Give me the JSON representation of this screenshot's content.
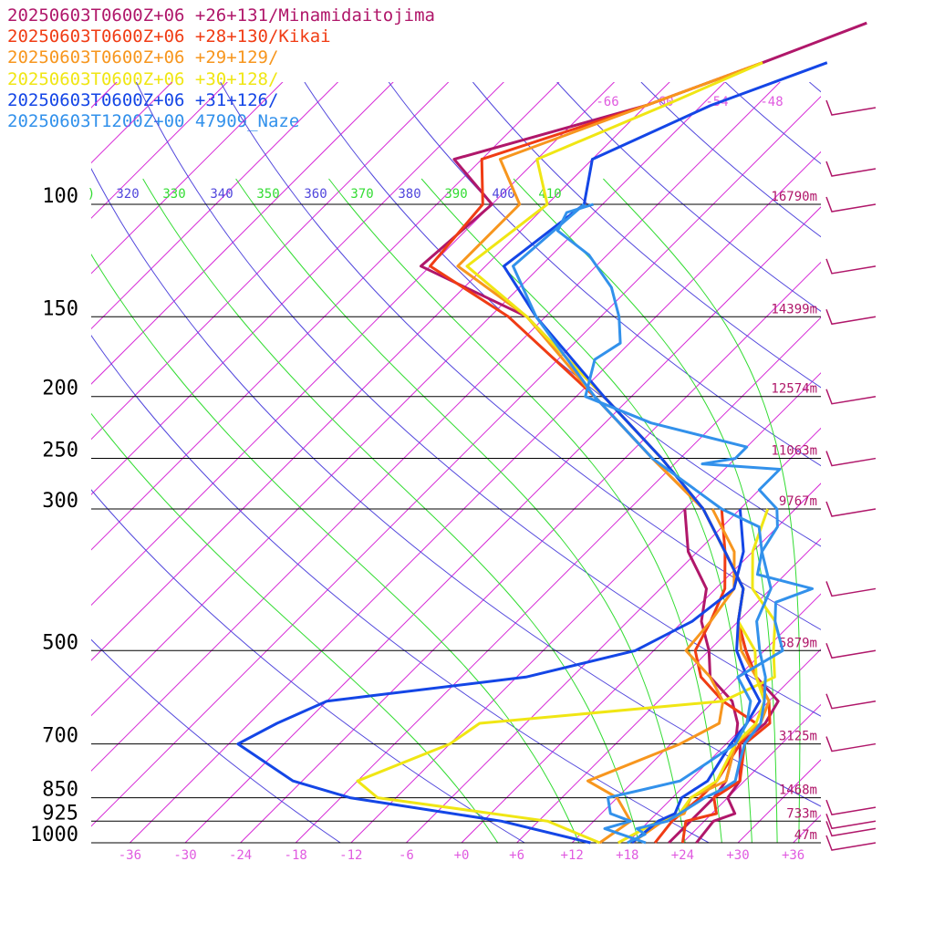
{
  "chart_data": {
    "type": "line",
    "subtype": "skew-T log-P sounding",
    "legend_position": "top-left",
    "x_range_C": [
      -40,
      40
    ],
    "y_range_hPa": [
      1000,
      100
    ],
    "temperature_ticks": [
      "-36",
      "-30",
      "-24",
      "-18",
      "-12",
      "-6",
      "+0",
      "+6",
      "+12",
      "+18",
      "+24",
      "+30",
      "+36"
    ],
    "pressure_ticks": [
      {
        "p": 100,
        "label": "100",
        "height": "16790m"
      },
      {
        "p": 150,
        "label": "150",
        "height": "14399m"
      },
      {
        "p": 200,
        "label": "200",
        "height": "12574m"
      },
      {
        "p": 250,
        "label": "250",
        "height": "11063m"
      },
      {
        "p": 300,
        "label": "300",
        "height": "9767m"
      },
      {
        "p": 500,
        "label": "500",
        "height": "5879m"
      },
      {
        "p": 700,
        "label": "700",
        "height": "3125m"
      },
      {
        "p": 850,
        "label": "850",
        "height": "1468m"
      },
      {
        "p": 925,
        "label": "925",
        "height": "733m"
      },
      {
        "p": 1000,
        "label": "1000",
        "height": "47m"
      }
    ],
    "theta_labels": [
      "320",
      "340",
      "360",
      "380",
      "400"
    ],
    "theta_e_labels": [
      "330",
      "350",
      "370",
      "390",
      "410"
    ],
    "upper_isotherm_labels": [
      "-66",
      "-60",
      "-54",
      "-48"
    ],
    "series": [
      {
        "name": "2025060З",
        "label": "20250603T0600Z+06 +26+131/Minamidaitojima",
        "color": "#b0176a",
        "temp": [
          [
            1000,
            25.5
          ],
          [
            925,
            25
          ],
          [
            850,
            23
          ],
          [
            700,
            20.5
          ],
          [
            600,
            19
          ],
          [
            500,
            10
          ],
          [
            400,
            4
          ],
          [
            300,
            -10
          ],
          [
            250,
            -20
          ],
          [
            200,
            -33
          ],
          [
            150,
            -50
          ],
          [
            125,
            -65
          ],
          [
            100,
            -66
          ],
          [
            85,
            -76
          ],
          [
            70,
            -62
          ],
          [
            60,
            -53
          ]
        ],
        "dew": [
          [
            300,
            -12
          ],
          [
            400,
            0
          ],
          [
            500,
            4
          ],
          [
            600,
            18
          ],
          [
            700,
            19
          ],
          [
            850,
            23
          ],
          [
            925,
            22
          ],
          [
            1000,
            22.5
          ]
        ]
      },
      {
        "name": "kikai",
        "label": "2025060З",
        "color": "#f03c14",
        "temp": [
          [
            1000,
            25
          ],
          [
            925,
            23
          ],
          [
            850,
            22
          ],
          [
            700,
            21
          ],
          [
            600,
            18
          ],
          [
            500,
            10
          ],
          [
            400,
            4
          ],
          [
            300,
            -10
          ],
          [
            250,
            -21
          ],
          [
            200,
            -34
          ],
          [
            150,
            -52
          ],
          [
            125,
            -67
          ],
          [
            100,
            -68
          ],
          [
            85,
            -70
          ],
          [
            70,
            -60
          ],
          [
            60,
            -53
          ]
        ],
        "dew": [
          [
            300,
            -8
          ],
          [
            400,
            1
          ],
          [
            500,
            4
          ],
          [
            600,
            17
          ],
          [
            700,
            20
          ],
          [
            850,
            21
          ],
          [
            925,
            20
          ],
          [
            1000,
            21
          ]
        ]
      },
      {
        "name": "orange",
        "label": "",
        "color": "#f7961e",
        "temp": [],
        "dew": []
      },
      {
        "name": "yellow",
        "label": "",
        "color": "#f0e614",
        "temp": [],
        "dew": []
      },
      {
        "name": "blue",
        "label": "",
        "color": "#1446e6",
        "temp": [],
        "dew": []
      },
      {
        "name": "naze",
        "label": "",
        "color": "#3291eb",
        "temp": [],
        "dew": []
      }
    ]
  },
  "legend": [
    {
      "text": "2025060З",
      "color": "#b0176a"
    }
  ]
}
